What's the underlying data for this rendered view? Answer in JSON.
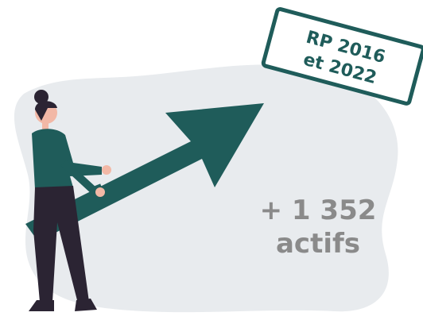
{
  "stamp": {
    "lines": [
      "RP 2016",
      "et 2022"
    ]
  },
  "figure": {
    "value": "+ 1 352",
    "label": "actifs"
  }
}
